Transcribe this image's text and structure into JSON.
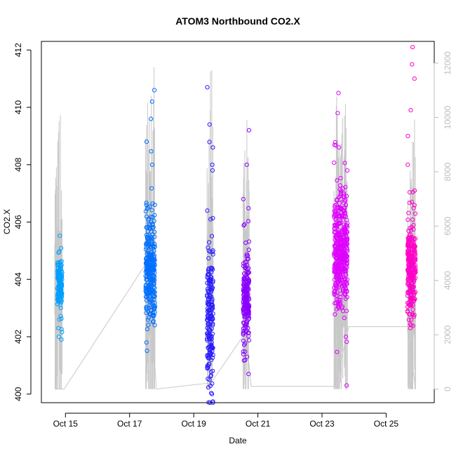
{
  "chart_data": {
    "type": "scatter",
    "title": "ATOM3 Northbound CO2.X",
    "xlabel": "Date",
    "ylabel": "CO2.X",
    "x_range": [
      "2016-10-14T06:00",
      "2016-10-26T12:00"
    ],
    "x_ticks": [
      {
        "date": "2016-10-15",
        "label": "Oct 15"
      },
      {
        "date": "2016-10-17",
        "label": "Oct 17"
      },
      {
        "date": "2016-10-19",
        "label": "Oct 19"
      },
      {
        "date": "2016-10-21",
        "label": "Oct 21"
      },
      {
        "date": "2016-10-23",
        "label": "Oct 23"
      },
      {
        "date": "2016-10-25",
        "label": "Oct 25"
      }
    ],
    "ylim": [
      399.7,
      412.3
    ],
    "y_ticks": [
      400,
      402,
      404,
      406,
      408,
      410,
      412
    ],
    "y2_range": [
      -500,
      12800
    ],
    "y2_ticks": [
      0,
      2000,
      4000,
      6000,
      8000,
      10000,
      12000
    ],
    "y2_color": "#bdbdbd",
    "marker": "open-circle",
    "grid": false,
    "legend": "none",
    "series": [
      {
        "color": "#00a0ff",
        "clusters": [
          {
            "start": "2016-10-14T18:00",
            "end": "2016-10-14T21:30",
            "center": 403.9,
            "spread": 0.35,
            "outliers": [
              401.9,
              402.3,
              402.6,
              404.5,
              402.0
            ]
          }
        ]
      },
      {
        "color": "#0070ff",
        "clusters": [
          {
            "start": "2016-10-17T12:00",
            "end": "2016-10-17T19:00",
            "center": 404.3,
            "spread": 0.9,
            "outliers": [
              410.6,
              410.2,
              409.6,
              408.8,
              408.0,
              406.6,
              401.8,
              402.4
            ]
          }
        ]
      },
      {
        "color": "#2a1cff",
        "clusters": [
          {
            "start": "2016-10-19T10:00",
            "end": "2016-10-19T14:30",
            "center": 402.8,
            "spread": 1.1,
            "outliers": [
              410.7,
              409.4,
              408.6,
              407.8,
              406.4,
              400.0,
              400.5,
              401.0
            ]
          }
        ]
      },
      {
        "color": "#8a00ff",
        "clusters": [
          {
            "start": "2016-10-20T13:00",
            "end": "2016-10-20T17:30",
            "center": 403.3,
            "spread": 0.75,
            "outliers": [
              409.2,
              408.0,
              406.8,
              401.3,
              400.7
            ]
          }
        ]
      },
      {
        "color": "#e000ff",
        "clusters": [
          {
            "start": "2016-10-23T09:00",
            "end": "2016-10-23T19:00",
            "center": 405.0,
            "spread": 0.9,
            "outliers": [
              410.5,
              409.8,
              408.6,
              407.8,
              403.0
            ]
          }
        ]
      },
      {
        "color": "#ff00c8",
        "clusters": [
          {
            "start": "2016-10-25T16:00",
            "end": "2016-10-25T22:00",
            "center": 404.4,
            "spread": 0.8,
            "outliers": [
              412.1,
              411.5,
              411.0,
              409.9,
              409.0,
              408.0,
              406.7
            ]
          }
        ]
      }
    ],
    "secondary_line": {
      "color": "#c8c8c8",
      "points": [
        [
          "2016-10-14T16:00",
          0
        ],
        [
          "2016-10-14T19:00",
          0
        ],
        [
          "2016-10-14T23:00",
          0
        ],
        [
          "2016-10-17T14:00",
          4750
        ],
        [
          "2016-10-17T20:00",
          0
        ],
        [
          "2016-10-19T13:00",
          230
        ],
        [
          "2016-10-20T15:00",
          2100
        ],
        [
          "2016-10-20T19:00",
          100
        ],
        [
          "2016-10-23T10:00",
          100
        ],
        [
          "2016-10-23T20:00",
          2300
        ],
        [
          "2016-10-25T16:00",
          2300
        ],
        [
          "2016-10-25T22:00",
          0
        ]
      ],
      "spike_bursts": [
        {
          "start": "2016-10-14T16:00",
          "end": "2016-10-14T21:30",
          "max": 11000
        },
        {
          "start": "2016-10-17T12:00",
          "end": "2016-10-17T19:00",
          "max": 12200
        },
        {
          "start": "2016-10-19T10:00",
          "end": "2016-10-19T14:30",
          "max": 12000
        },
        {
          "start": "2016-10-20T13:00",
          "end": "2016-10-20T17:30",
          "max": 10800
        },
        {
          "start": "2016-10-23T09:00",
          "end": "2016-10-23T19:00",
          "max": 11200
        },
        {
          "start": "2016-10-25T16:00",
          "end": "2016-10-25T22:00",
          "max": 10200
        }
      ]
    }
  }
}
